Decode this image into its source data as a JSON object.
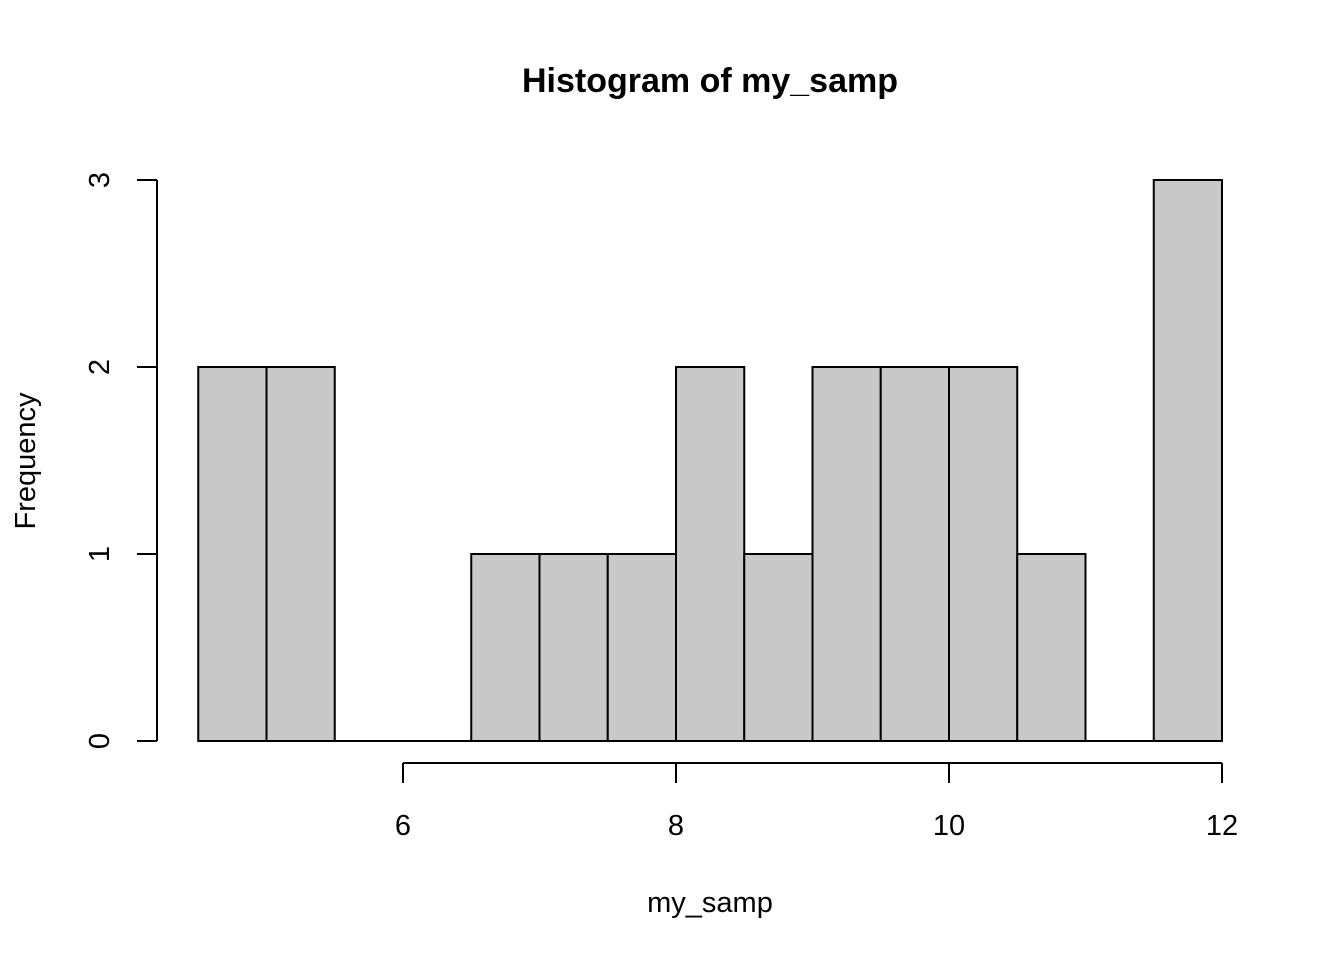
{
  "chart_data": {
    "type": "bar",
    "subtype": "histogram",
    "title": "Histogram of my_samp",
    "xlabel": "my_samp",
    "ylabel": "Frequency",
    "bins": [
      {
        "from": 4.5,
        "to": 5.0,
        "count": 2
      },
      {
        "from": 5.0,
        "to": 5.5,
        "count": 2
      },
      {
        "from": 5.5,
        "to": 6.0,
        "count": 0
      },
      {
        "from": 6.0,
        "to": 6.5,
        "count": 0
      },
      {
        "from": 6.5,
        "to": 7.0,
        "count": 1
      },
      {
        "from": 7.0,
        "to": 7.5,
        "count": 1
      },
      {
        "from": 7.5,
        "to": 8.0,
        "count": 1
      },
      {
        "from": 8.0,
        "to": 8.5,
        "count": 2
      },
      {
        "from": 8.5,
        "to": 9.0,
        "count": 1
      },
      {
        "from": 9.0,
        "to": 9.5,
        "count": 2
      },
      {
        "from": 9.5,
        "to": 10.0,
        "count": 2
      },
      {
        "from": 10.0,
        "to": 10.5,
        "count": 2
      },
      {
        "from": 10.5,
        "to": 11.0,
        "count": 1
      },
      {
        "from": 11.0,
        "to": 11.5,
        "count": 0
      },
      {
        "from": 11.5,
        "to": 12.0,
        "count": 3
      }
    ],
    "xticks": [
      6,
      8,
      10,
      12
    ],
    "xtick_labels": [
      "6",
      "8",
      "10",
      "12"
    ],
    "yticks": [
      0,
      1,
      2,
      3
    ],
    "ytick_labels": [
      "0",
      "1",
      "2",
      "3"
    ],
    "ylim": [
      0,
      3
    ],
    "bar_color": "#c8c8c8",
    "edge_color": "#000000",
    "grid": false,
    "legend": "none"
  }
}
